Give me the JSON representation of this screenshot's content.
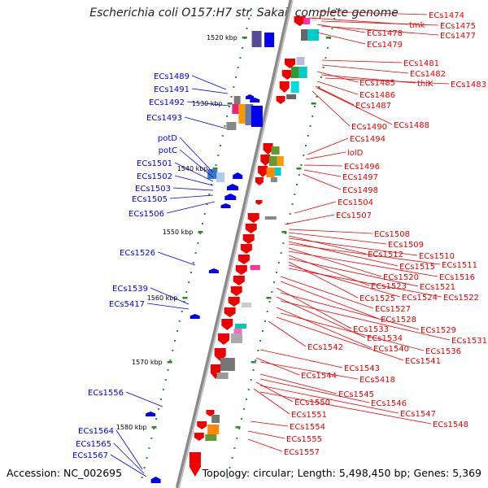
{
  "title": "Escherichia coli O157:H7 str. Sakai, complete genome",
  "accession": "Accession: NC_002695",
  "topology": "Topology: circular; Length: 5,498,450 bp; Genes: 5,369",
  "colors": {
    "forward": "#0000ee",
    "reverse": "#ee0000",
    "backbone": "#808080",
    "tick": "#2a8a2a"
  },
  "scale_labels": [
    "1520 kbp",
    "1530 kbp",
    "1540 kbp",
    "1550 kbp",
    "1560 kbp",
    "1570 kbp",
    "1580 kbp"
  ],
  "left_labels": [
    "ECs1489",
    "ECs1491",
    "ECs1492",
    "ECs1493",
    "potD",
    "potC",
    "ECs1501",
    "ECs1502",
    "ECs1503",
    "ECs1505",
    "ECs1506",
    "ECs1526",
    "ECs1539",
    "ECs5417",
    "ECs1556",
    "ECs1564",
    "ECs1565",
    "ECs1567"
  ],
  "right_labels": [
    "ECs1474",
    "tmk",
    "ECs1475",
    "ECs1478",
    "ECs1477",
    "ECs1479",
    "ECs1481",
    "ECs1482",
    "ECs1485",
    "thiK",
    "ECs1483",
    "ECs1486",
    "ECs1487",
    "ECs1490",
    "ECs1488",
    "ECs1494",
    "lolD",
    "ECs1496",
    "ECs1497",
    "ECs1498",
    "ECs1504",
    "ECs1507",
    "ECs1508",
    "ECs1509",
    "ECs1512",
    "ECs1510",
    "ECs1515",
    "ECs1511",
    "ECs1520",
    "ECs1516",
    "ECs1523",
    "ECs1521",
    "ECs1525",
    "ECs1524",
    "ECs1522",
    "ECs1527",
    "ECs1528",
    "ECs1533",
    "ECs1529",
    "ECs1534",
    "ECs1531",
    "ECs1542",
    "ECs1540",
    "ECs1536",
    "ECs1541",
    "ECs1543",
    "ECs1544",
    "ECs5418",
    "ECs1545",
    "ECs1546",
    "ECs1550",
    "ECs1547",
    "ECs1551",
    "ECs1548",
    "ECs1554",
    "ECs1555",
    "ECs1557"
  ]
}
